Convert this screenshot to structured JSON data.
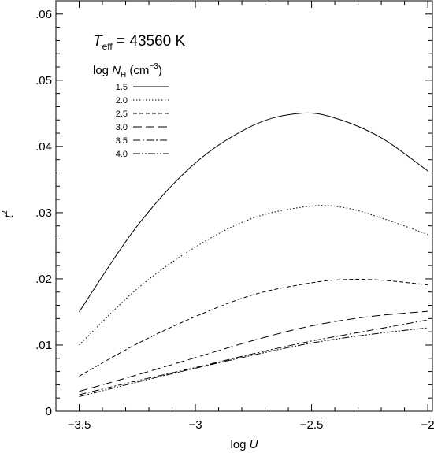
{
  "chart_data": {
    "type": "line",
    "xlabel_prefix": "log ",
    "xlabel_var": "U",
    "ylabel_var": "t",
    "ylabel_sup": "2",
    "xlim": [
      -3.6,
      -1.98
    ],
    "ylim": [
      0,
      0.062
    ],
    "x_ticks": [
      {
        "value": -3.5,
        "label": "−3.5"
      },
      {
        "value": -3.0,
        "label": "−3"
      },
      {
        "value": -2.5,
        "label": "−2.5"
      },
      {
        "value": -2.0,
        "label": "−2"
      }
    ],
    "y_ticks": [
      {
        "value": 0,
        "label": "0"
      },
      {
        "value": 0.01,
        "label": ".01"
      },
      {
        "value": 0.02,
        "label": ".02"
      },
      {
        "value": 0.03,
        "label": ".03"
      },
      {
        "value": 0.04,
        "label": ".04"
      },
      {
        "value": 0.05,
        "label": ".05"
      },
      {
        "value": 0.06,
        "label": ".06"
      }
    ],
    "annotation": {
      "teff_var": "T",
      "teff_sub": "eff",
      "teff_value": " = 43560 K"
    },
    "legend_title": {
      "prefix": "log ",
      "var": "N",
      "sub": "H",
      "unit_open": " (cm",
      "unit_sup": "−3",
      "unit_close": ")"
    },
    "legend_placement": "top-left",
    "series": [
      {
        "name": "1.5",
        "dash": "",
        "x": [
          -3.5,
          -3.25,
          -3.0,
          -2.75,
          -2.55,
          -2.4,
          -2.2,
          -2.0
        ],
        "y": [
          0.015,
          0.028,
          0.0375,
          0.0432,
          0.045,
          0.0443,
          0.0413,
          0.0363
        ]
      },
      {
        "name": "2.0",
        "dash": "1.5 2.5",
        "x": [
          -3.5,
          -3.25,
          -3.0,
          -2.75,
          -2.5,
          -2.35,
          -2.2,
          -2.0
        ],
        "y": [
          0.01,
          0.0185,
          0.0248,
          0.0292,
          0.031,
          0.0307,
          0.0292,
          0.0267
        ]
      },
      {
        "name": "2.5",
        "dash": "5 3",
        "x": [
          -3.5,
          -3.25,
          -3.0,
          -2.75,
          -2.5,
          -2.35,
          -2.2,
          -2.0
        ],
        "y": [
          0.0053,
          0.0102,
          0.0143,
          0.0176,
          0.0194,
          0.0199,
          0.0198,
          0.0191
        ]
      },
      {
        "name": "3.0",
        "dash": "11 5",
        "x": [
          -3.5,
          -3.25,
          -3.0,
          -2.75,
          -2.5,
          -2.25,
          -2.0
        ],
        "y": [
          0.003,
          0.0055,
          0.0081,
          0.0107,
          0.0129,
          0.0143,
          0.0151
        ]
      },
      {
        "name": "3.5",
        "dash": "9 3 2 3",
        "x": [
          -3.5,
          -3.25,
          -3.0,
          -2.75,
          -2.5,
          -2.25,
          -2.0
        ],
        "y": [
          0.0025,
          0.0046,
          0.0066,
          0.0087,
          0.0106,
          0.0122,
          0.0138
        ]
      },
      {
        "name": "4.0",
        "dash": "9 2 2 2 2 2",
        "x": [
          -3.5,
          -3.25,
          -3.0,
          -2.75,
          -2.5,
          -2.25,
          -2.0
        ],
        "y": [
          0.0022,
          0.0044,
          0.0065,
          0.0085,
          0.0103,
          0.0116,
          0.0126
        ]
      }
    ]
  }
}
